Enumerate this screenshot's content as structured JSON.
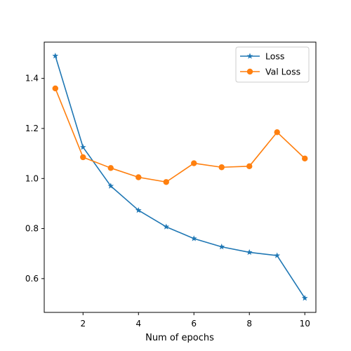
{
  "chart_data": {
    "type": "line",
    "title": "",
    "xlabel": "Num of epochs",
    "ylabel": "",
    "xlim": [
      0.6,
      10.4
    ],
    "ylim": [
      0.465,
      1.545
    ],
    "x_ticks": [
      2,
      4,
      6,
      8,
      10
    ],
    "y_ticks": [
      0.6,
      0.8,
      1.0,
      1.2,
      1.4
    ],
    "x_tick_labels": [
      "2",
      "4",
      "6",
      "8",
      "10"
    ],
    "y_tick_labels": [
      "0.6",
      "0.8",
      "1.0",
      "1.2",
      "1.4"
    ],
    "grid": false,
    "legend_position": "top-right",
    "x": [
      1,
      2,
      3,
      4,
      5,
      6,
      7,
      8,
      9,
      10
    ],
    "series": [
      {
        "name": "Loss",
        "marker": "star",
        "color": "#1f77b4",
        "values": [
          1.49,
          1.125,
          0.97,
          0.873,
          0.807,
          0.76,
          0.727,
          0.705,
          0.692,
          0.522
        ]
      },
      {
        "name": "Val Loss",
        "marker": "circle",
        "color": "#ff7f0e",
        "values": [
          1.36,
          1.085,
          1.042,
          1.005,
          0.986,
          1.061,
          1.045,
          1.049,
          1.185,
          1.08
        ]
      }
    ]
  }
}
